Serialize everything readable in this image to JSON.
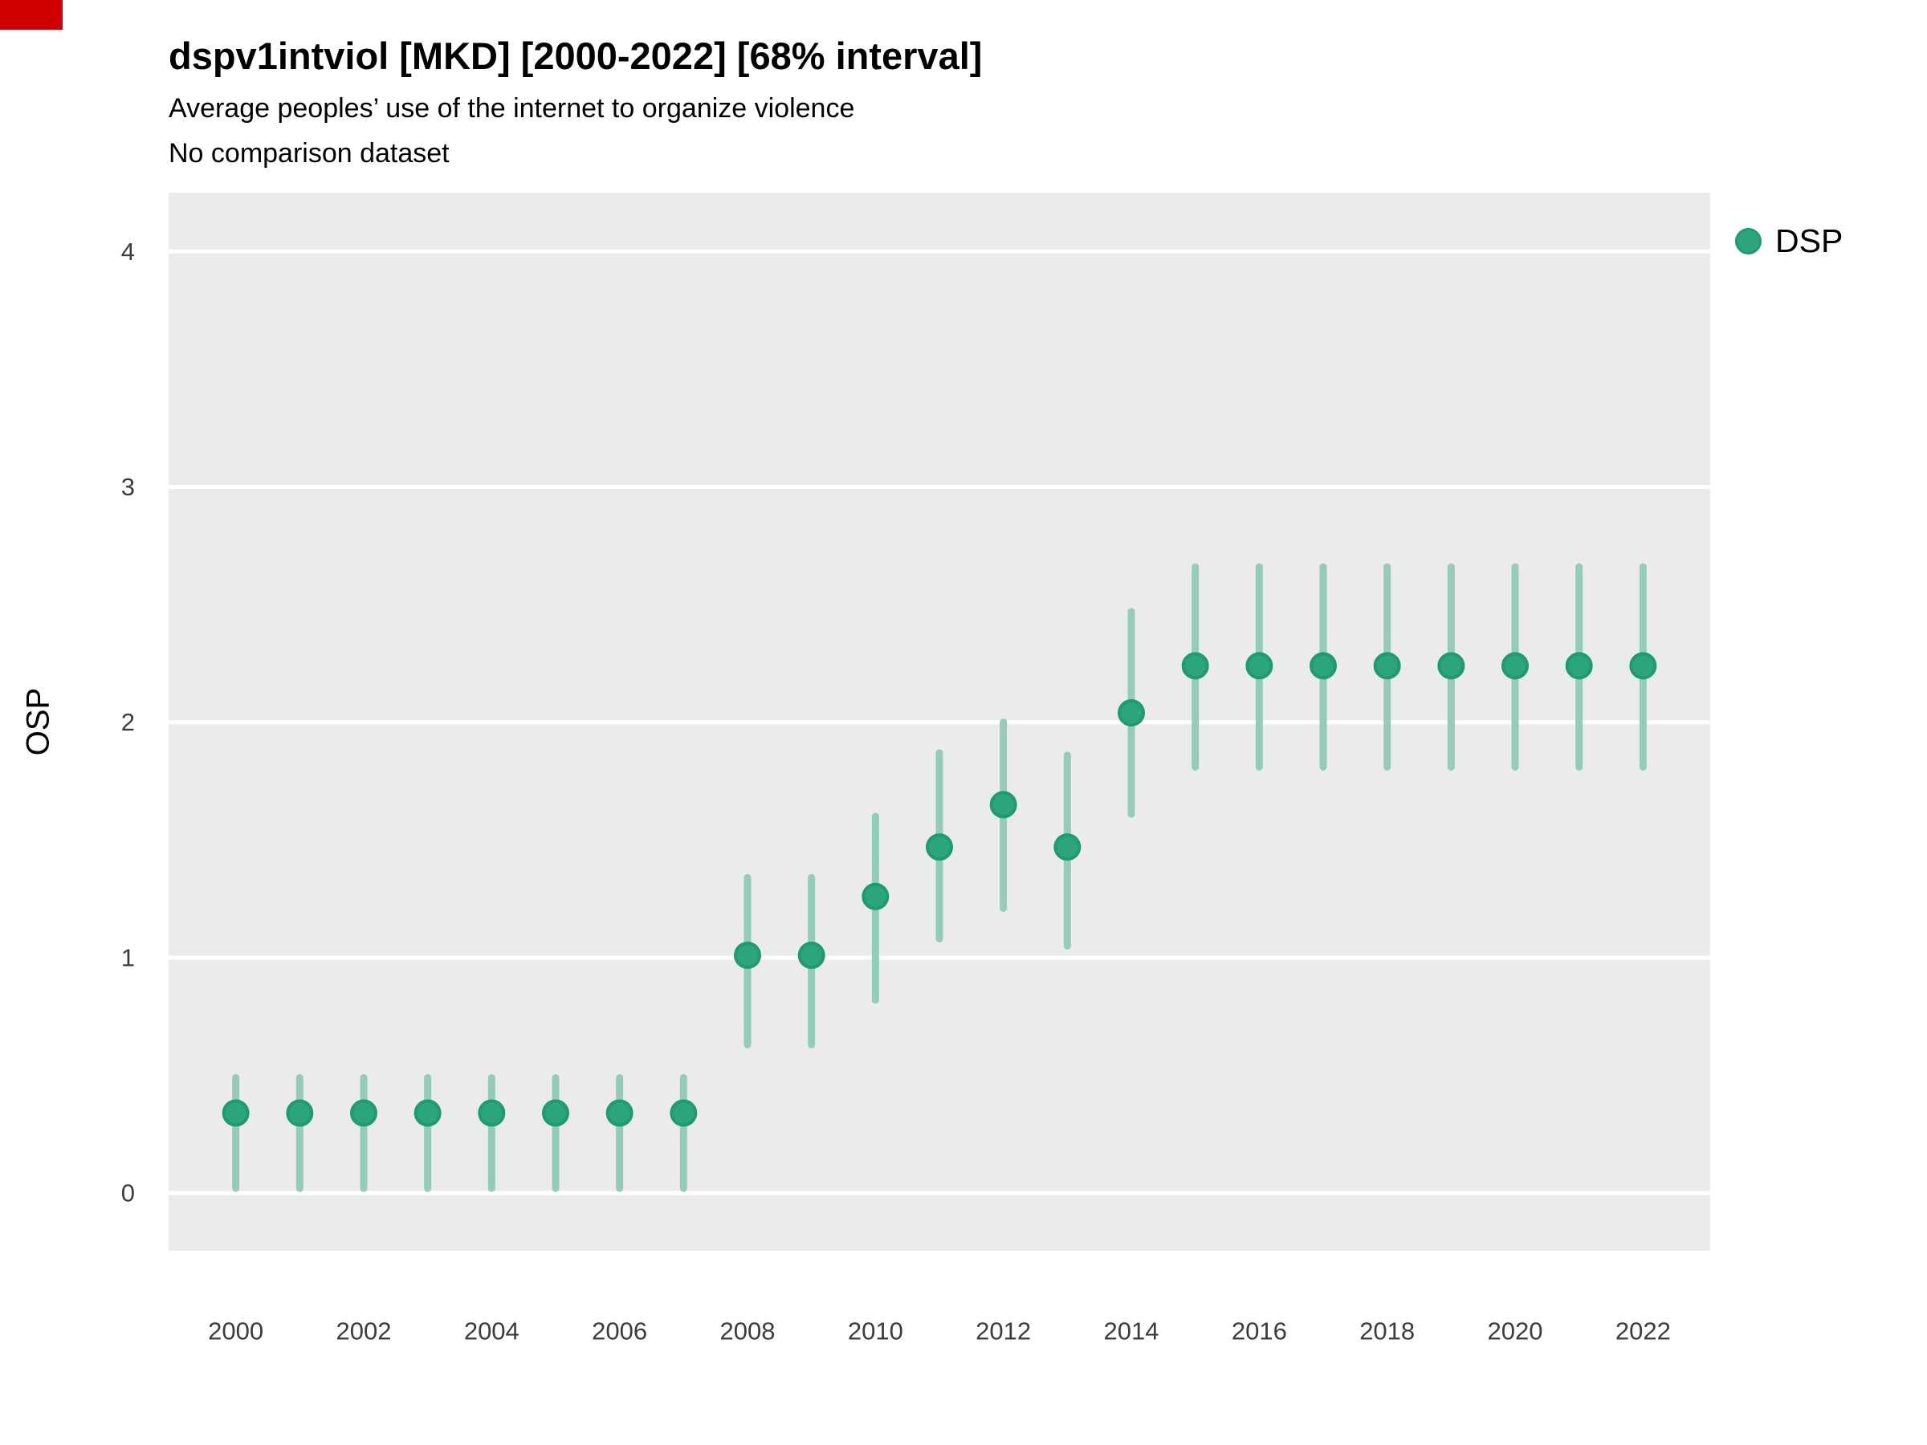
{
  "chart_data": {
    "type": "scatter",
    "title": "dspv1intviol [MKD] [2000-2022] [68% interval]",
    "subtitle": "Average peoples’ use of the internet to organize violence",
    "note": "No comparison dataset",
    "xlabel": "",
    "ylabel": "OSP",
    "legend_label": "DSP",
    "legend_position": "right",
    "interval_level": "68%",
    "grid": "horizontal-major-only",
    "x": [
      2000,
      2001,
      2002,
      2003,
      2004,
      2005,
      2006,
      2007,
      2008,
      2009,
      2010,
      2011,
      2012,
      2013,
      2014,
      2015,
      2016,
      2017,
      2018,
      2019,
      2020,
      2021,
      2022
    ],
    "series": [
      {
        "name": "DSP",
        "values": [
          0.34,
          0.34,
          0.34,
          0.34,
          0.34,
          0.34,
          0.34,
          0.34,
          1.01,
          1.01,
          1.26,
          1.47,
          1.65,
          1.47,
          2.04,
          2.24,
          2.24,
          2.24,
          2.24,
          2.24,
          2.24,
          2.24,
          2.24
        ],
        "interval_low": [
          0.02,
          0.02,
          0.02,
          0.02,
          0.02,
          0.02,
          0.02,
          0.02,
          0.63,
          0.63,
          0.82,
          1.08,
          1.21,
          1.05,
          1.61,
          1.81,
          1.81,
          1.81,
          1.81,
          1.81,
          1.81,
          1.81,
          1.81
        ],
        "interval_high": [
          0.49,
          0.49,
          0.49,
          0.49,
          0.49,
          0.49,
          0.49,
          0.49,
          1.34,
          1.34,
          1.6,
          1.87,
          2.0,
          1.86,
          2.47,
          2.66,
          2.66,
          2.66,
          2.66,
          2.66,
          2.66,
          2.66,
          2.66
        ]
      }
    ],
    "xticks": [
      2000,
      2002,
      2004,
      2006,
      2008,
      2010,
      2012,
      2014,
      2016,
      2018,
      2020,
      2022
    ],
    "yticks": [
      0,
      1,
      2,
      3,
      4
    ],
    "xlim": [
      1998.95,
      2023.05
    ],
    "ylim": [
      -0.245,
      4.25
    ],
    "colors": {
      "point": "#2aa57c",
      "point_stroke": "#1f9b72",
      "interval": "#93cdb8",
      "panel_background": "#ebebeb",
      "gridline": "#ffffff",
      "tick_label": "#3c3c3c",
      "corner_marker": "#d10000"
    }
  }
}
